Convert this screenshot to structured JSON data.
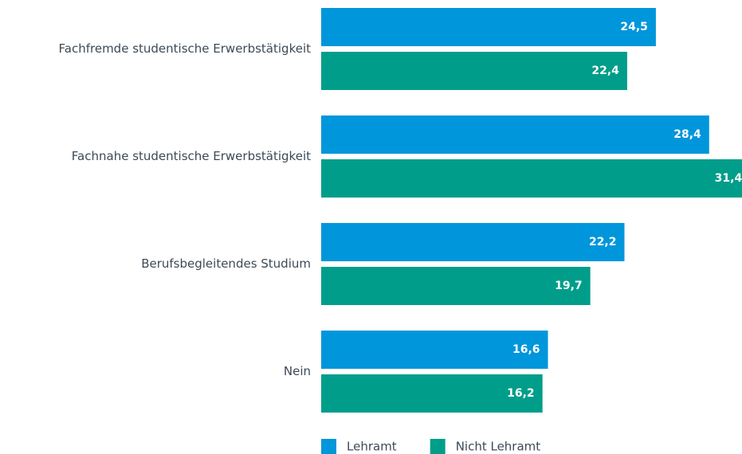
{
  "chart_data": {
    "type": "bar",
    "orientation": "horizontal",
    "categories": [
      "Fachfremde studentische Erwerbstätigkeit",
      "Fachnahe studentische Erwerbstätigkeit",
      "Berufsbegleitendes Studium",
      "Nein"
    ],
    "series": [
      {
        "name": "Lehramt",
        "color": "#0096db",
        "values": [
          24.5,
          28.4,
          22.2,
          16.6
        ],
        "value_labels": [
          "24,5",
          "28,4",
          "22,2",
          "16,6"
        ]
      },
      {
        "name": "Nicht Lehramt",
        "color": "#009e8a",
        "values": [
          22.4,
          31.4,
          19.7,
          16.2
        ],
        "value_labels": [
          "22,4",
          "31,4",
          "19,7",
          "16,2"
        ]
      }
    ],
    "legend": "bottom"
  }
}
